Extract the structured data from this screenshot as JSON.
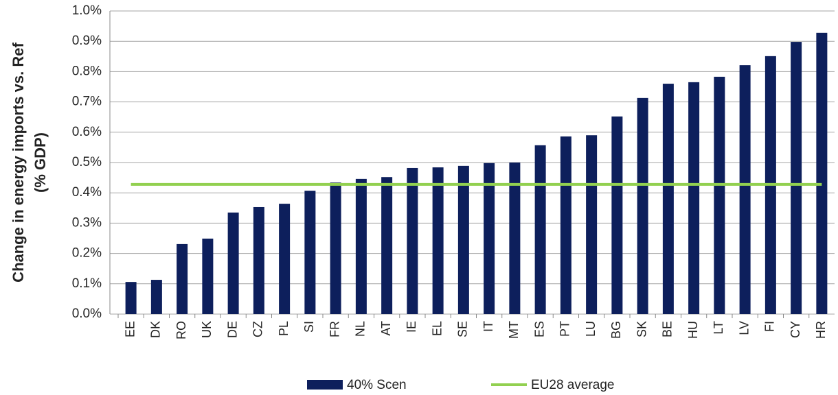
{
  "chart_data": {
    "type": "bar",
    "y_label": [
      "Change in energy imports vs. Ref",
      "(% GDP)"
    ],
    "categories": [
      "EE",
      "DK",
      "RO",
      "UK",
      "DE",
      "CZ",
      "PL",
      "SI",
      "FR",
      "NL",
      "AT",
      "IE",
      "EL",
      "SE",
      "IT",
      "MT",
      "ES",
      "PT",
      "LU",
      "BG",
      "SK",
      "BE",
      "HU",
      "LT",
      "LV",
      "FI",
      "CY",
      "HR"
    ],
    "series": [
      {
        "name": "40% Scen",
        "type": "bar",
        "color": "#0d1f5c",
        "values": [
          0.106,
          0.113,
          0.231,
          0.249,
          0.335,
          0.353,
          0.364,
          0.407,
          0.434,
          0.446,
          0.452,
          0.482,
          0.484,
          0.489,
          0.498,
          0.5,
          0.557,
          0.586,
          0.59,
          0.652,
          0.713,
          0.76,
          0.765,
          0.783,
          0.821,
          0.851,
          0.898,
          0.928
        ]
      },
      {
        "name": "EU28 average",
        "type": "line",
        "color": "#92d050",
        "values": [
          0.428,
          0.428,
          0.428,
          0.428,
          0.428,
          0.428,
          0.428,
          0.428,
          0.428,
          0.428,
          0.428,
          0.428,
          0.428,
          0.428,
          0.428,
          0.428,
          0.428,
          0.428,
          0.428,
          0.428,
          0.428,
          0.428,
          0.428,
          0.428,
          0.428,
          0.428,
          0.428,
          0.428
        ]
      }
    ],
    "ylim": [
      0,
      1.0
    ],
    "yticks": [
      {
        "value": 0,
        "label": "0.0%"
      },
      {
        "value": 0.1,
        "label": "0.1%"
      },
      {
        "value": 0.2,
        "label": "0.2%"
      },
      {
        "value": 0.3,
        "label": "0.3%"
      },
      {
        "value": 0.4,
        "label": "0.4%"
      },
      {
        "value": 0.5,
        "label": "0.5%"
      },
      {
        "value": 0.6,
        "label": "0.6%"
      },
      {
        "value": 0.7,
        "label": "0.7%"
      },
      {
        "value": 0.8,
        "label": "0.8%"
      },
      {
        "value": 0.9,
        "label": "0.9%"
      },
      {
        "value": 1.0,
        "label": "1.0%"
      }
    ],
    "grid": true
  }
}
